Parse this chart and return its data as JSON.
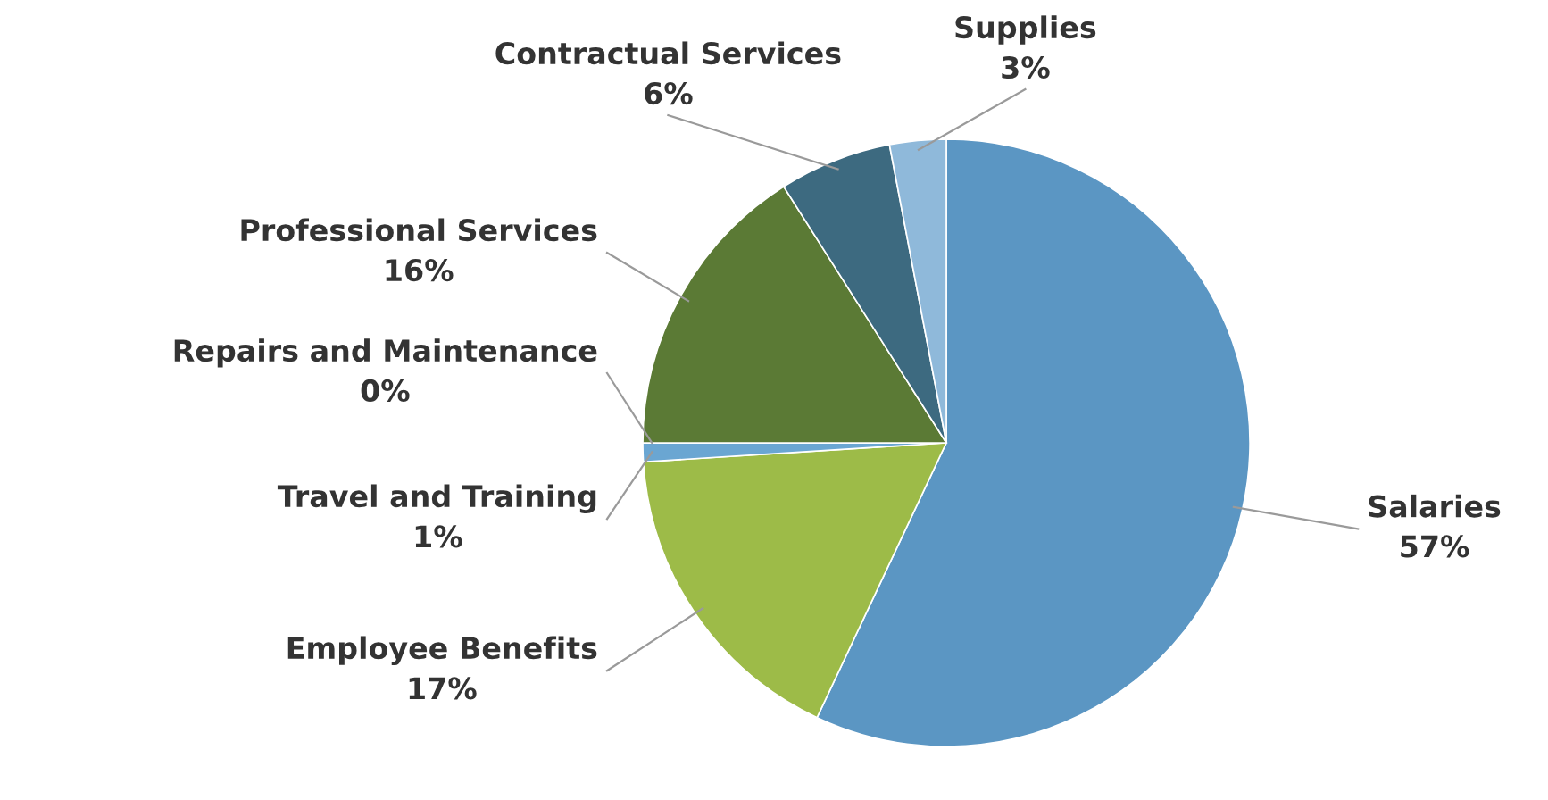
{
  "chart_data": {
    "type": "pie",
    "categories": [
      "Salaries",
      "Employee Benefits",
      "Travel and Training",
      "Repairs and Maintenance",
      "Professional Services",
      "Contractual Services",
      "Supplies"
    ],
    "values": [
      57,
      17,
      1,
      0,
      16,
      6,
      3
    ],
    "colors": [
      "#5b96c3",
      "#9dbb48",
      "#6aa6d2",
      "#4f86b0",
      "#5b7a35",
      "#3d6a80",
      "#8fb9da"
    ],
    "value_labels": [
      "57%",
      "17%",
      "1%",
      "0%",
      "16%",
      "6%",
      "3%"
    ]
  }
}
